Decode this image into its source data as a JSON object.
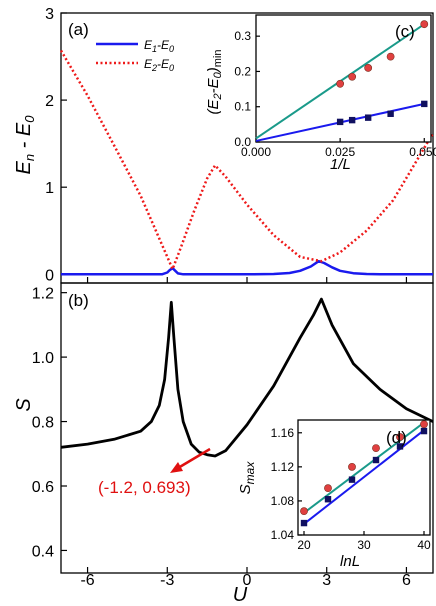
{
  "chart_data": [
    {
      "panel_label": "(a)",
      "type": "line",
      "xlabel": "",
      "ylabel": "E_n - E_0",
      "xlim": [
        -7,
        7
      ],
      "ylim": [
        -0.1,
        3.0
      ],
      "yticks": [
        0,
        1,
        2,
        3
      ],
      "legend": "top-left",
      "series": [
        {
          "name": "E_1-E_0",
          "color": "#1a1aee",
          "style": "solid",
          "x": [
            -7,
            -4,
            -3.2,
            -3.0,
            -2.9,
            -2.8,
            -2.7,
            -2.6,
            -2.4,
            -2.0,
            0.0,
            1.0,
            1.6,
            2.0,
            2.4,
            2.7,
            2.9,
            3.2,
            3.5,
            4.0,
            4.5,
            5.0,
            7.0
          ],
          "y": [
            0.0,
            0.0,
            0.0,
            0.02,
            0.05,
            0.07,
            0.04,
            0.01,
            0.0,
            0.0,
            0.0,
            0.003,
            0.015,
            0.04,
            0.09,
            0.15,
            0.13,
            0.08,
            0.04,
            0.012,
            0.003,
            0.0,
            0.0
          ]
        },
        {
          "name": "E_2-E_0",
          "color": "#ee1a1a",
          "style": "dotted",
          "x": [
            -7,
            -6,
            -5,
            -4,
            -3.5,
            -3.0,
            -2.8,
            -2.5,
            -2.0,
            -1.5,
            -1.2,
            -0.8,
            0.0,
            1.0,
            2.0,
            2.8,
            3.5,
            4.5,
            5.5,
            7.0
          ],
          "y": [
            2.57,
            2.05,
            1.48,
            0.9,
            0.55,
            0.2,
            0.06,
            0.3,
            0.72,
            1.1,
            1.25,
            1.12,
            0.8,
            0.45,
            0.2,
            0.15,
            0.25,
            0.5,
            0.85,
            1.62
          ]
        }
      ]
    },
    {
      "panel_label": "(b)",
      "type": "line",
      "xlabel": "U",
      "ylabel": "S",
      "xlim": [
        -7,
        7
      ],
      "ylim": [
        0.33,
        1.23
      ],
      "xticks": [
        -6,
        -3,
        0,
        3,
        6
      ],
      "yticks": [
        0.4,
        0.6,
        0.8,
        1.0,
        1.2
      ],
      "series": [
        {
          "name": "S",
          "color": "#000000",
          "style": "solid",
          "x": [
            -7,
            -6,
            -5,
            -4,
            -3.6,
            -3.3,
            -3.1,
            -2.95,
            -2.85,
            -2.75,
            -2.6,
            -2.4,
            -2.1,
            -1.8,
            -1.5,
            -1.2,
            -0.8,
            0.0,
            1.0,
            2.0,
            2.5,
            2.8,
            3.2,
            4.0,
            5.0,
            6.0,
            7.0
          ],
          "y": [
            0.72,
            0.73,
            0.745,
            0.77,
            0.8,
            0.85,
            0.93,
            1.06,
            1.17,
            1.06,
            0.9,
            0.8,
            0.73,
            0.705,
            0.697,
            0.693,
            0.71,
            0.79,
            0.91,
            1.06,
            1.13,
            1.18,
            1.1,
            0.98,
            0.9,
            0.84,
            0.8
          ]
        }
      ],
      "annotation": {
        "text": "(-1.2, 0.693)",
        "x": -1.2,
        "y": 0.693,
        "color": "#e01010"
      }
    },
    {
      "panel_label": "(c)",
      "type": "scatter",
      "xlabel": "1/L",
      "ylabel": "(E_2-E_0)_min",
      "xlim": [
        0.0,
        0.052
      ],
      "ylim": [
        0.0,
        0.36
      ],
      "xticks": [
        "0.000",
        "0.025",
        "0.050"
      ],
      "yticks": [
        "0.0",
        "0.1",
        "0.2",
        "0.3"
      ],
      "series": [
        {
          "name": "red",
          "color": "#e04040",
          "marker": "circle",
          "fit_color": "#1a9a8a",
          "x": [
            0.025,
            0.02857,
            0.03333,
            0.04,
            0.05
          ],
          "y": [
            0.165,
            0.185,
            0.21,
            0.242,
            0.334
          ],
          "fit": [
            [
              0.0,
              0.01
            ],
            [
              0.05,
              0.334
            ]
          ]
        },
        {
          "name": "blue",
          "color": "#101060",
          "marker": "square",
          "fit_color": "#1a1aee",
          "x": [
            0.025,
            0.02857,
            0.03333,
            0.04,
            0.05
          ],
          "y": [
            0.057,
            0.062,
            0.069,
            0.08,
            0.108
          ],
          "fit": [
            [
              0.0,
              0.003
            ],
            [
              0.05,
              0.108
            ]
          ]
        }
      ]
    },
    {
      "panel_label": "(d)",
      "type": "scatter",
      "xlabel": "ln L",
      "ylabel": "S_max",
      "xlim": [
        19,
        41
      ],
      "ylim": [
        1.04,
        1.175
      ],
      "xticks": [
        "20",
        "30",
        "40"
      ],
      "yticks": [
        "1.04",
        "1.08",
        "1.12",
        "1.16"
      ],
      "series": [
        {
          "name": "red",
          "color": "#e04040",
          "marker": "circle",
          "fit_color": "#1a9a8a",
          "x": [
            20,
            24,
            28,
            32,
            36,
            40
          ],
          "y": [
            1.068,
            1.095,
            1.12,
            1.142,
            1.155,
            1.17
          ],
          "fit": [
            [
              20,
              1.066
            ],
            [
              40,
              1.172
            ]
          ]
        },
        {
          "name": "blue",
          "color": "#101060",
          "marker": "square",
          "fit_color": "#1a1aee",
          "x": [
            20,
            24,
            28,
            32,
            36,
            40
          ],
          "y": [
            1.054,
            1.082,
            1.105,
            1.128,
            1.144,
            1.162
          ],
          "fit": [
            [
              20,
              1.053
            ],
            [
              40,
              1.163
            ]
          ]
        }
      ]
    }
  ]
}
